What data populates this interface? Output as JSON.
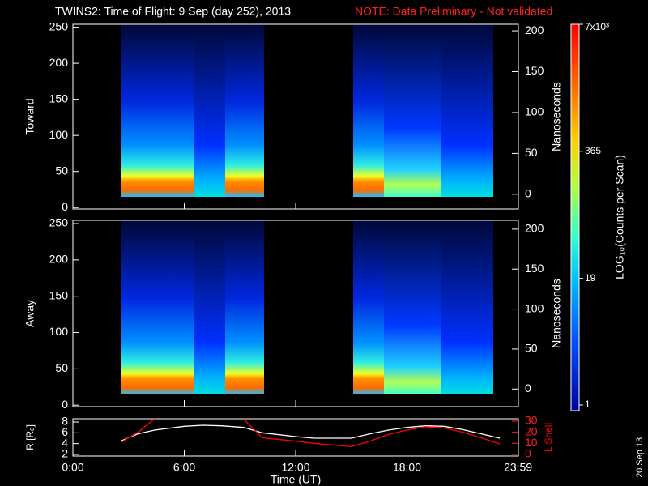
{
  "title": "TWINS2: Time of Flight:  9 Sep (day 252), 2013",
  "note": "NOTE: Data Preliminary - Not validated",
  "date_stamp": "20 Sep 13",
  "colorbar": {
    "label": "LOG₁₀(Counts per Scan)",
    "log": true,
    "lim": [
      1,
      7000
    ],
    "ticks": [
      1,
      19,
      365,
      {
        "value": 7000,
        "label": "7x10³"
      }
    ]
  },
  "chart_data": [
    {
      "type": "spectrogram",
      "ylabel": "Toward",
      "ylim": [
        -2,
        254
      ],
      "yticks": [
        0,
        50,
        100,
        150,
        200,
        250
      ],
      "y2label": "Nanoseconds",
      "y2lim": [
        -18,
        208
      ],
      "y2ticks": [
        0,
        50,
        100,
        150,
        200
      ]
    },
    {
      "type": "spectrogram",
      "ylabel": "Away",
      "ylim": [
        -2,
        254.5
      ],
      "yticks": [
        0,
        50,
        100,
        150,
        200,
        250
      ],
      "y2label": "Nanoseconds",
      "y2lim": [
        -22,
        211
      ],
      "y2ticks": [
        0,
        50,
        100,
        150,
        200
      ]
    },
    {
      "type": "line",
      "xlabel": "Time (UT)",
      "x": [
        2.6,
        3.5,
        4.4,
        6,
        7,
        8,
        9.2,
        10.2,
        12,
        13,
        15,
        16,
        17,
        18,
        19,
        20,
        21,
        22,
        23
      ],
      "xlim": [
        0,
        24
      ],
      "xticks": [
        {
          "value": 0,
          "label": "0:00"
        },
        {
          "value": 6,
          "label": "6:00"
        },
        {
          "value": 12,
          "label": "12:00"
        },
        {
          "value": 18,
          "label": "18:00"
        },
        {
          "value": 23.983,
          "label": "23:59"
        }
      ],
      "ylim": [
        1.7,
        8.6
      ],
      "yticks": [
        2,
        4,
        6,
        8
      ],
      "y2lim": [
        -1.5,
        32.2
      ],
      "y2ticks": [
        0,
        10,
        20,
        30
      ],
      "series": [
        {
          "name": "R [Rₑ]",
          "color": "#ffffff",
          "values": [
            4.5,
            5.8,
            6.5,
            7.2,
            7.4,
            7.3,
            7.0,
            6.0,
            5.3,
            5.0,
            5.0,
            5.8,
            6.5,
            7.0,
            7.3,
            7.2,
            6.6,
            5.8,
            5.0
          ]
        },
        {
          "name": "L Shell",
          "color": "#ff0000",
          "axis": "y2",
          "values": [
            11,
            20,
            32,
            null,
            null,
            null,
            32,
            15,
            12,
            10,
            7,
            12,
            18,
            22,
            25,
            24,
            20,
            15,
            9.5
          ]
        }
      ]
    }
  ]
}
